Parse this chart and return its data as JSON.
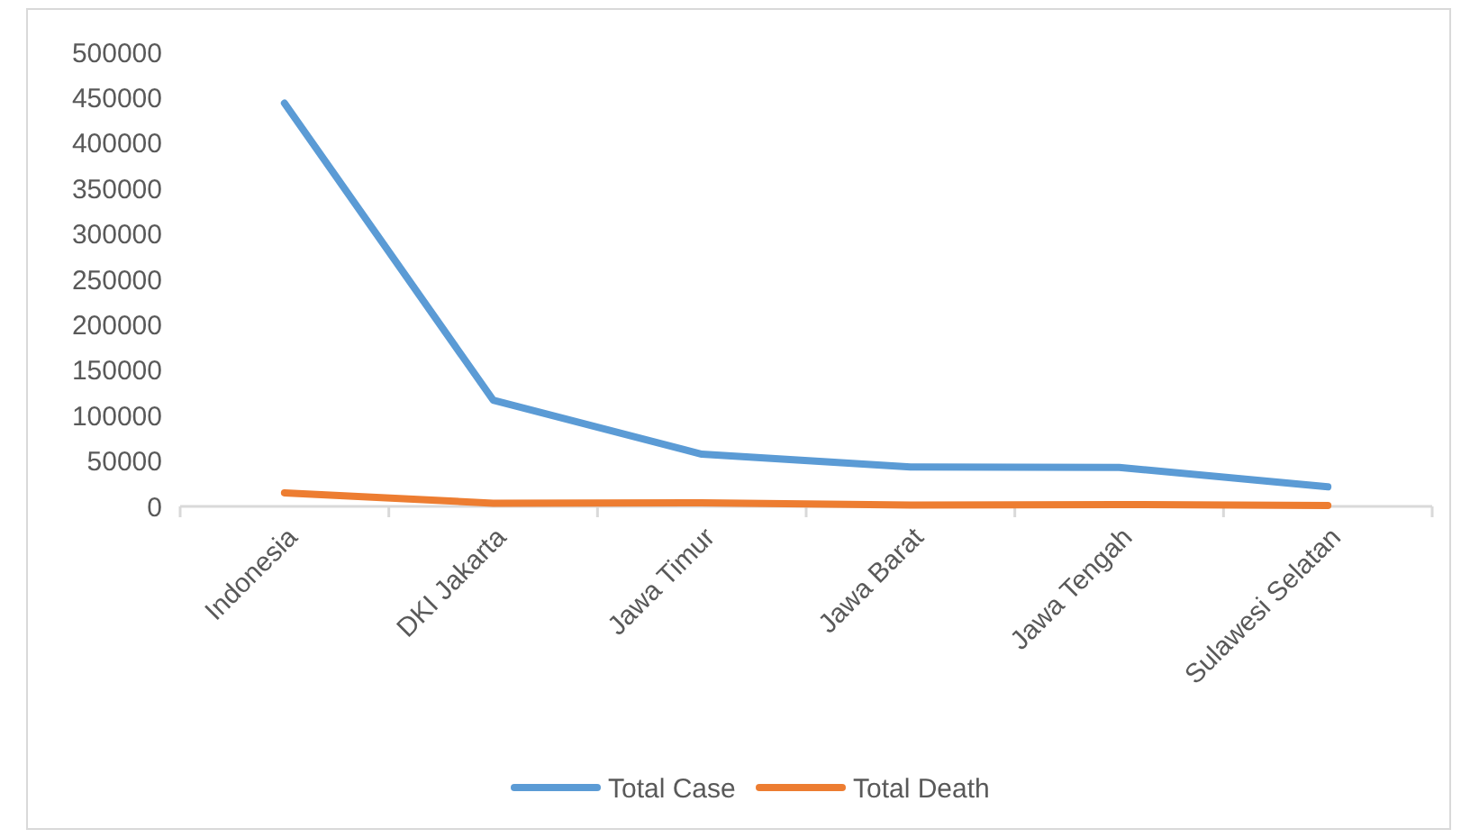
{
  "chart_data": {
    "type": "line",
    "categories": [
      "Indonesia",
      "DKI Jakarta",
      "Jawa Timur",
      "Jawa Barat",
      "Jawa Tengah",
      "Sulawesi Selatan"
    ],
    "series": [
      {
        "name": "Total Case",
        "color": "#5b9bd5",
        "values": [
          444000,
          117000,
          57500,
          43500,
          43000,
          21500
        ]
      },
      {
        "name": "Total Death",
        "color": "#ed7d31",
        "values": [
          15000,
          3500,
          4000,
          1500,
          2000,
          1000
        ]
      }
    ],
    "ylim": [
      0,
      500000
    ],
    "yticks": [
      0,
      50000,
      100000,
      150000,
      200000,
      250000,
      300000,
      350000,
      400000,
      450000,
      500000
    ],
    "grid": false,
    "legend": "bottom",
    "marker": "none",
    "line_style": "solid"
  }
}
